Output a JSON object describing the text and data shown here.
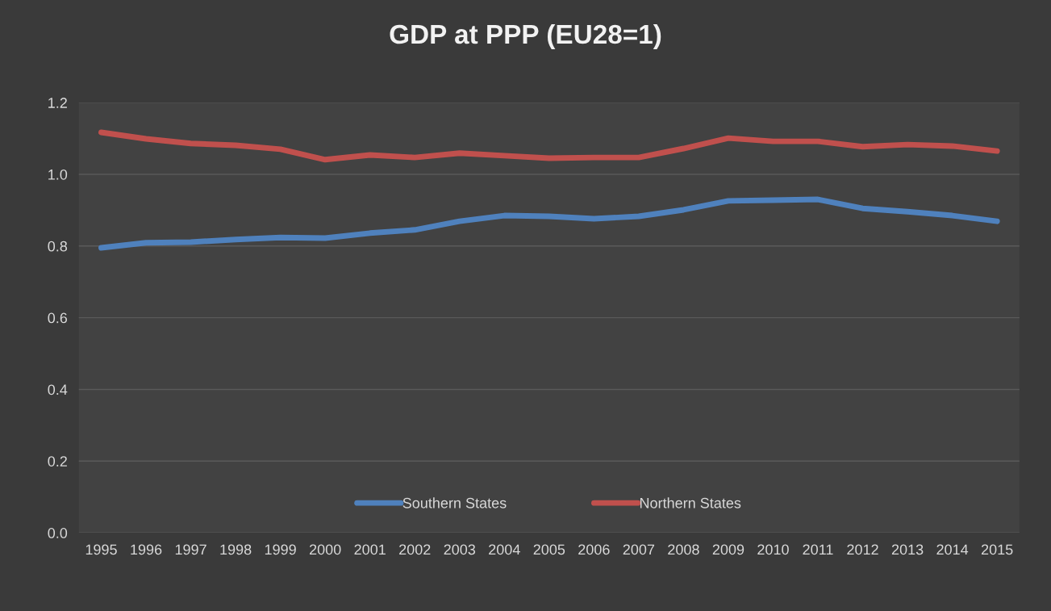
{
  "chart_data": {
    "type": "line",
    "title": "GDP at PPP (EU28=1)",
    "categories": [
      "1995",
      "1996",
      "1997",
      "1998",
      "1999",
      "2000",
      "2001",
      "2002",
      "2003",
      "2004",
      "2005",
      "2006",
      "2007",
      "2008",
      "2009",
      "2010",
      "2011",
      "2012",
      "2013",
      "2014",
      "2015"
    ],
    "series": [
      {
        "name": "Southern States",
        "color": "#4f81bd",
        "values": [
          0.795,
          0.809,
          0.811,
          0.818,
          0.824,
          0.822,
          0.836,
          0.845,
          0.869,
          0.885,
          0.883,
          0.876,
          0.883,
          0.901,
          0.926,
          0.928,
          0.93,
          0.905,
          0.896,
          0.885,
          0.869
        ]
      },
      {
        "name": "Northern States",
        "color": "#c0504d",
        "values": [
          1.117,
          1.099,
          1.086,
          1.081,
          1.07,
          1.041,
          1.054,
          1.047,
          1.059,
          1.052,
          1.045,
          1.047,
          1.047,
          1.072,
          1.101,
          1.092,
          1.092,
          1.077,
          1.083,
          1.079,
          1.065
        ]
      }
    ],
    "ylim": [
      0,
      1.2
    ],
    "yticks": [
      {
        "value": 0,
        "label": "0.0"
      },
      {
        "value": 0.2,
        "label": "0.2"
      },
      {
        "value": 0.4,
        "label": "0.4"
      },
      {
        "value": 0.6,
        "label": "0.6"
      },
      {
        "value": 0.8,
        "label": "0.8"
      },
      {
        "value": 1.0,
        "label": "1.0"
      },
      {
        "value": 1.2,
        "label": "1.2"
      }
    ],
    "grid": "y",
    "legend": "bottom",
    "line_style": "solid",
    "marker": "none"
  }
}
